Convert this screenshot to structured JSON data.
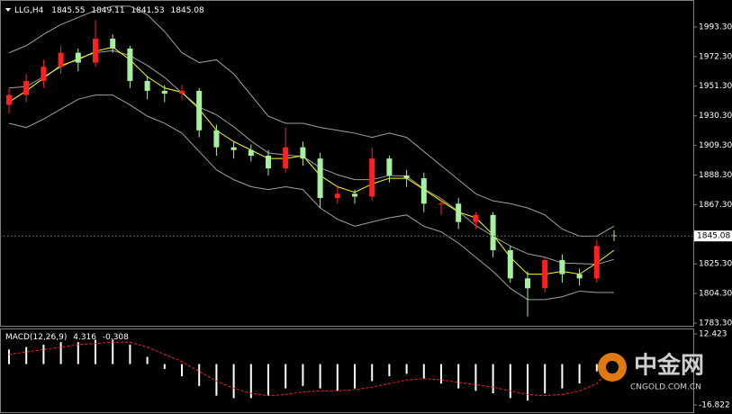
{
  "chart_data": [
    {
      "type": "candlestick",
      "symbol": "LLG,H4",
      "ohlc": [
        1845.55,
        1849.11,
        1841.53,
        1845.08
      ],
      "ylim": [
        1781.4,
        2012.4
      ],
      "yticks": [
        {
          "value": 1993.3,
          "label": "1993.30"
        },
        {
          "value": 1972.3,
          "label": "1972.30"
        },
        {
          "value": 1951.3,
          "label": "1951.30"
        },
        {
          "value": 1930.3,
          "label": "1930.30"
        },
        {
          "value": 1909.3,
          "label": "1909.30"
        },
        {
          "value": 1888.3,
          "label": "1888.30"
        },
        {
          "value": 1867.3,
          "label": "1867.30"
        },
        {
          "value": 1825.3,
          "label": "1825.30"
        },
        {
          "value": 1804.3,
          "label": "1804.30"
        },
        {
          "value": 1783.3,
          "label": "1783.30"
        }
      ],
      "current_price": 1845.08,
      "up_color": "#ff2020",
      "down_color": "#a8f0a0",
      "open": [
        1938,
        1945,
        1955,
        1965,
        1975,
        1968,
        1985,
        1978,
        1955,
        1948,
        1946,
        1948,
        1920,
        1908,
        1906,
        1902,
        1893,
        1908,
        1900,
        1872,
        1875,
        1873,
        1900,
        1888,
        1886,
        1868,
        1868,
        1855,
        1860,
        1835,
        1815,
        1808,
        1828,
        1818,
        1815,
        1845.55
      ],
      "high": [
        1950,
        1960,
        1970,
        1980,
        1978,
        1998,
        1988,
        1980,
        1958,
        1952,
        1952,
        1950,
        1924,
        1912,
        1910,
        1906,
        1922,
        1912,
        1904,
        1880,
        1878,
        1908,
        1902,
        1892,
        1890,
        1872,
        1872,
        1862,
        1862,
        1838,
        1820,
        1830,
        1832,
        1822,
        1842,
        1849.11
      ],
      "low": [
        1932,
        1940,
        1950,
        1960,
        1962,
        1965,
        1975,
        1950,
        1942,
        1940,
        1942,
        1915,
        1902,
        1900,
        1898,
        1888,
        1890,
        1895,
        1865,
        1868,
        1868,
        1870,
        1883,
        1880,
        1862,
        1860,
        1850,
        1850,
        1830,
        1812,
        1788,
        1805,
        1812,
        1810,
        1812,
        1841.53
      ],
      "close": [
        1945,
        1955,
        1965,
        1975,
        1968,
        1985,
        1978,
        1955,
        1948,
        1946,
        1948,
        1920,
        1908,
        1906,
        1902,
        1893,
        1908,
        1900,
        1872,
        1875,
        1873,
        1900,
        1888,
        1886,
        1868,
        1868,
        1855,
        1860,
        1835,
        1815,
        1808,
        1828,
        1818,
        1815,
        1838,
        1845.08
      ],
      "series": [
        {
          "color": "#a0a0a0",
          "values": [
            1975,
            1980,
            1988,
            1995,
            2000,
            2005,
            2008,
            2008,
            2002,
            1990,
            1975,
            1968,
            1970,
            1960,
            1945,
            1930,
            1925,
            1925,
            1922,
            1920,
            1918,
            1915,
            1918,
            1915,
            1905,
            1895,
            1885,
            1875,
            1870,
            1868,
            1865,
            1860,
            1850,
            1845,
            1845,
            1852
          ]
        },
        {
          "color": "#a0a0a0",
          "values": [
            1950,
            1951,
            1958,
            1965,
            1971,
            1975,
            1976.5,
            1973,
            1966,
            1957.5,
            1946.5,
            1936.5,
            1931,
            1922.5,
            1912.5,
            1904,
            1902.5,
            1901.5,
            1893.5,
            1888.5,
            1885,
            1885,
            1888,
            1887.5,
            1878.5,
            1871.5,
            1862.5,
            1852.5,
            1845,
            1838,
            1832.5,
            1830,
            1826,
            1825.5,
            1825,
            1828.5
          ]
        },
        {
          "color": "#a0a0a0",
          "values": [
            1925,
            1922,
            1928,
            1935,
            1942,
            1945,
            1945,
            1938,
            1930,
            1925,
            1918,
            1905,
            1892,
            1885,
            1880,
            1878,
            1880,
            1878,
            1865,
            1857,
            1852,
            1855,
            1858,
            1860,
            1852,
            1848,
            1840,
            1830,
            1820,
            1808,
            1800,
            1800,
            1802,
            1806,
            1805,
            1805
          ]
        },
        {
          "color": "#ffff00",
          "values": [
            1940,
            1948,
            1957,
            1966,
            1970,
            1976,
            1979,
            1970,
            1958,
            1950,
            1947,
            1935,
            1920,
            1912,
            1906,
            1900,
            1900,
            1902,
            1888,
            1880,
            1876,
            1882,
            1886,
            1886,
            1878,
            1870,
            1862,
            1858,
            1846,
            1830,
            1818,
            1818,
            1820,
            1818,
            1826,
            1835
          ]
        }
      ]
    },
    {
      "type": "macd",
      "title": "MACD(12,26,9)",
      "main": 4.316,
      "signal_value": -0.308,
      "ylim": [
        -16.822,
        12.423
      ],
      "yticks": [
        12.423,
        -16.822
      ],
      "hist_color": "#ffffff",
      "signal_color": "#ff2020",
      "histogram": [
        6,
        7,
        8,
        9,
        9,
        10,
        10,
        8,
        3,
        -2,
        -5,
        -9,
        -13,
        -14,
        -14,
        -13,
        -10,
        -9,
        -10,
        -11,
        -10,
        -7,
        -5,
        -4,
        -6,
        -8,
        -10,
        -11,
        -12,
        -14,
        -15,
        -12,
        -10,
        -8,
        -3,
        4.316
      ],
      "signal": [
        4,
        5,
        6,
        7,
        8,
        8.5,
        9,
        9,
        7,
        4,
        1,
        -3,
        -7,
        -10,
        -12,
        -13,
        -12.5,
        -11.5,
        -11,
        -11,
        -10.5,
        -9.5,
        -8,
        -6.5,
        -6,
        -6.5,
        -7.5,
        -8.5,
        -9.5,
        -11,
        -12.5,
        -13,
        -12.5,
        -11,
        -8,
        -0.308
      ]
    }
  ],
  "watermark": {
    "brand": "中金网",
    "domain": "CNGOLD.COM.CN"
  }
}
